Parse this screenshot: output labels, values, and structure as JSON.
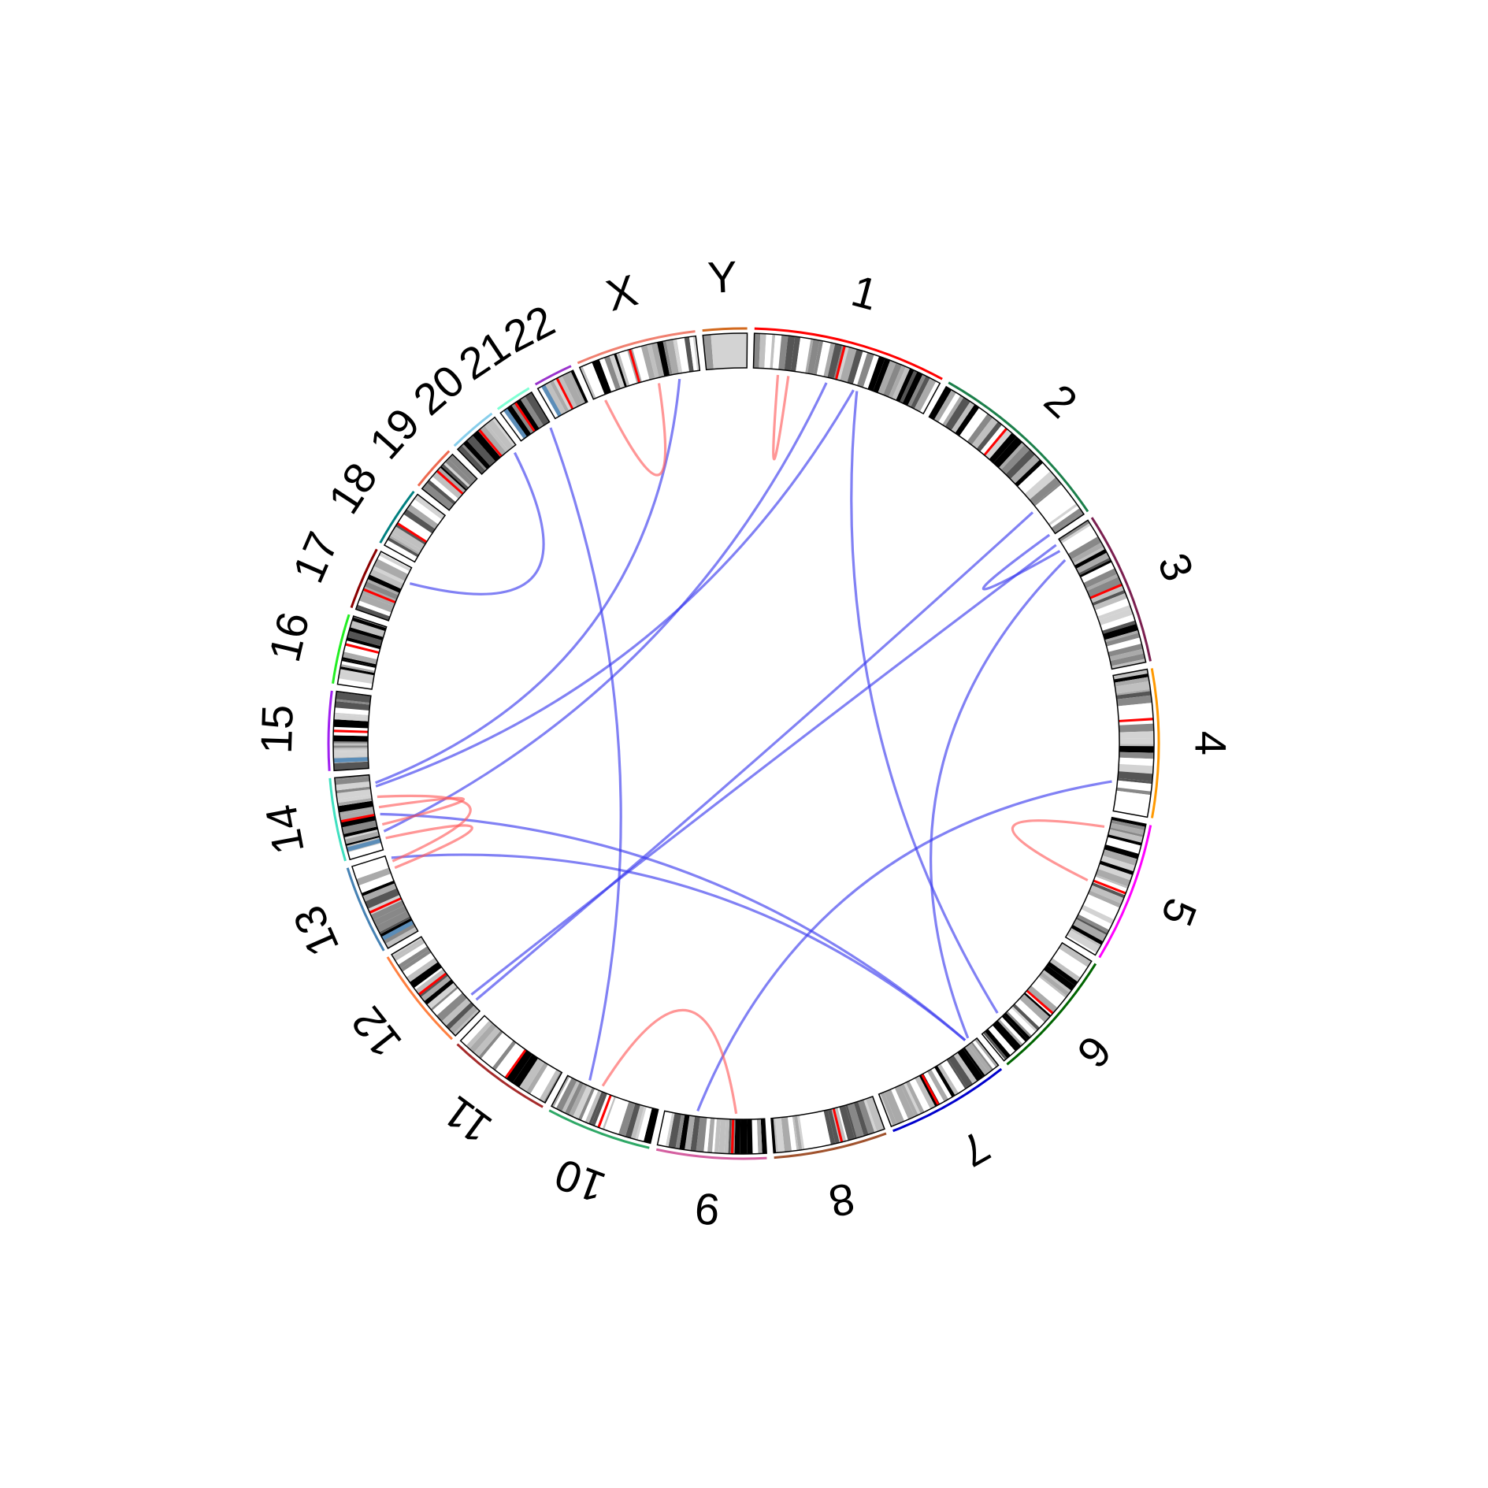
{
  "chart_data": {
    "type": "circos",
    "title": "",
    "chromosomes": [
      {
        "name": "1",
        "length": 249,
        "color": "#ff0000"
      },
      {
        "name": "2",
        "length": 243,
        "color": "#1b7f4a"
      },
      {
        "name": "3",
        "length": 198,
        "color": "#7a1f4f"
      },
      {
        "name": "4",
        "length": 191,
        "color": "#ff9900"
      },
      {
        "name": "5",
        "length": 181,
        "color": "#ff00ff"
      },
      {
        "name": "6",
        "length": 171,
        "color": "#006400"
      },
      {
        "name": "7",
        "length": 159,
        "color": "#0000cc"
      },
      {
        "name": "8",
        "length": 146,
        "color": "#a0522d"
      },
      {
        "name": "9",
        "length": 141,
        "color": "#d45fa0"
      },
      {
        "name": "10",
        "length": 136,
        "color": "#2ea866"
      },
      {
        "name": "11",
        "length": 135,
        "color": "#a52a2a"
      },
      {
        "name": "12",
        "length": 133,
        "color": "#ff8040"
      },
      {
        "name": "13",
        "length": 115,
        "color": "#4682b4"
      },
      {
        "name": "14",
        "length": 107,
        "color": "#40e0c0"
      },
      {
        "name": "15",
        "length": 102,
        "color": "#a020f0"
      },
      {
        "name": "16",
        "length": 90,
        "color": "#22ee22"
      },
      {
        "name": "17",
        "length": 81,
        "color": "#8b0000"
      },
      {
        "name": "18",
        "length": 78,
        "color": "#008080"
      },
      {
        "name": "19",
        "length": 59,
        "color": "#ee6a50"
      },
      {
        "name": "20",
        "length": 63,
        "color": "#87ceeb"
      },
      {
        "name": "21",
        "length": 48,
        "color": "#7fffd4"
      },
      {
        "name": "22",
        "length": 51,
        "color": "#9932cc"
      },
      {
        "name": "X",
        "length": 155,
        "color": "#f08070"
      },
      {
        "name": "Y",
        "length": 57,
        "color": "#d2691e"
      }
    ],
    "links": [
      {
        "a": [
          "1",
          35
        ],
        "b": [
          "1",
          50
        ],
        "type": "intra"
      },
      {
        "a": [
          "1",
          105
        ],
        "b": [
          "14",
          25
        ],
        "type": "inter"
      },
      {
        "a": [
          "1",
          145
        ],
        "b": [
          "14",
          90
        ],
        "type": "inter"
      },
      {
        "a": [
          "1",
          150
        ],
        "b": [
          "6",
          135
        ],
        "type": "inter"
      },
      {
        "a": [
          "2",
          240
        ],
        "b": [
          "3",
          15
        ],
        "type": "inter"
      },
      {
        "a": [
          "2",
          200
        ],
        "b": [
          "12",
          15
        ],
        "type": "inter"
      },
      {
        "a": [
          "3",
          5
        ],
        "b": [
          "12",
          25
        ],
        "type": "inter"
      },
      {
        "a": [
          "3",
          30
        ],
        "b": [
          "7",
          10
        ],
        "type": "inter"
      },
      {
        "a": [
          "4",
          150
        ],
        "b": [
          "9",
          95
        ],
        "type": "inter"
      },
      {
        "a": [
          "5",
          15
        ],
        "b": [
          "5",
          95
        ],
        "type": "intra"
      },
      {
        "a": [
          "7",
          15
        ],
        "b": [
          "14",
          50
        ],
        "type": "inter"
      },
      {
        "a": [
          "7",
          15
        ],
        "b": [
          "13",
          110
        ],
        "type": "inter"
      },
      {
        "a": [
          "9",
          40
        ],
        "b": [
          "10",
          85
        ],
        "type": "intra"
      },
      {
        "a": [
          "10",
          105
        ],
        "b": [
          "21",
          45
        ],
        "type": "inter"
      },
      {
        "a": [
          "14",
          35
        ],
        "b": [
          "14",
          60
        ],
        "type": "intra"
      },
      {
        "a": [
          "14",
          15
        ],
        "b": [
          "13",
          95
        ],
        "type": "intra"
      },
      {
        "a": [
          "13",
          105
        ],
        "b": [
          "14",
          75
        ],
        "type": "intra"
      },
      {
        "a": [
          "14",
          95
        ],
        "b": [
          "X",
          125
        ],
        "type": "inter"
      },
      {
        "a": [
          "17",
          60
        ],
        "b": [
          "20",
          55
        ],
        "type": "inter"
      },
      {
        "a": [
          "X",
          15
        ],
        "b": [
          "X",
          95
        ],
        "type": "intra"
      }
    ],
    "link_colors": {
      "inter": "#3333ee",
      "intra": "#ff5555"
    }
  }
}
